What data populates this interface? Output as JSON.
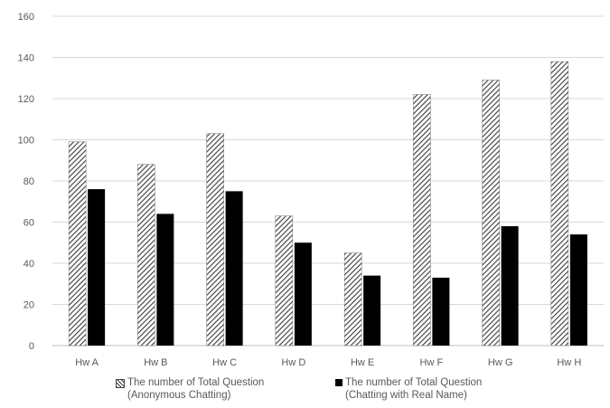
{
  "chart_data": {
    "type": "bar",
    "categories": [
      "Hw A",
      "Hw B",
      "Hw C",
      "Hw D",
      "Hw E",
      "Hw F",
      "Hw G",
      "Hw H"
    ],
    "series": [
      {
        "name": "The number of Total Question (Anonymous Chatting)",
        "values": [
          99,
          88,
          103,
          63,
          45,
          122,
          129,
          138
        ],
        "pattern": "hatched",
        "color": "#3a3a3a"
      },
      {
        "name": "The number of Total Question (Chatting with Real Name)",
        "values": [
          76,
          64,
          75,
          50,
          34,
          33,
          58,
          54
        ],
        "pattern": "solid",
        "color": "#000000"
      }
    ],
    "yticks": [
      0,
      20,
      40,
      60,
      80,
      100,
      120,
      140,
      160
    ],
    "ylim": [
      0,
      160
    ],
    "grid": true,
    "legend_position": "bottom"
  },
  "legend": {
    "series1_line1": "The number of Total Question",
    "series1_line2": "(Anonymous Chatting)",
    "series2_line1": "The number of Total Question",
    "series2_line2": "(Chatting with Real Name)"
  }
}
